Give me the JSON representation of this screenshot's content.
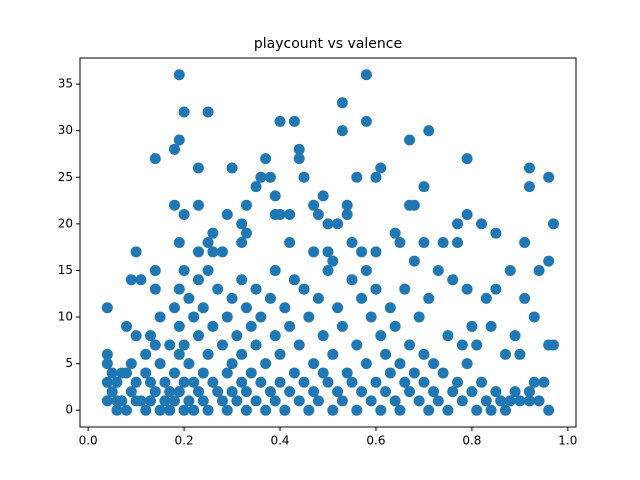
{
  "chart_data": {
    "type": "scatter",
    "title": "playcount vs valence",
    "color": "#1f77b4",
    "xlim": [
      -0.017,
      1.017
    ],
    "ylim": [
      -1.8,
      37.8
    ],
    "xticks": [
      {
        "value": 0,
        "label": "0.0"
      },
      0.2,
      0.4,
      0.6,
      0.8,
      {
        "value": 1,
        "label": "1.0"
      }
    ],
    "yticks": [
      0,
      5,
      10,
      15,
      20,
      25,
      30,
      35
    ],
    "x": [
      0.19,
      0.58,
      0.2,
      0.25,
      0.53,
      0.19,
      0.18,
      0.4,
      0.43,
      0.53,
      0.58,
      0.71,
      0.14,
      0.37,
      0.44,
      0.79,
      0.67,
      0.23,
      0.3,
      0.44,
      0.61,
      0.92,
      0.36,
      0.38,
      0.45,
      0.56,
      0.6,
      0.96,
      0.35,
      0.7,
      0.92,
      0.49,
      0.39,
      0.18,
      0.23,
      0.33,
      0.47,
      0.54,
      0.67,
      0.68,
      0.2,
      0.29,
      0.39,
      0.4,
      0.42,
      0.48,
      0.54,
      0.79,
      0.32,
      0.5,
      0.52,
      0.77,
      0.82,
      0.97,
      0.26,
      0.33,
      0.64,
      0.85,
      0.19,
      0.25,
      0.32,
      0.42,
      0.55,
      0.65,
      0.7,
      0.74,
      0.77,
      0.91,
      0.1,
      0.23,
      0.26,
      0.28,
      0.47,
      0.5,
      0.51,
      0.57,
      0.6,
      0.04,
      0.04,
      0.04,
      0.04,
      0.04,
      0.05,
      0.05,
      0.06,
      0.06,
      0.06,
      0.07,
      0.07,
      0.08,
      0.08,
      0.08,
      0.09,
      0.09,
      0.09,
      0.1,
      0.1,
      0.1,
      0.11,
      0.11,
      0.12,
      0.12,
      0.12,
      0.13,
      0.13,
      0.13,
      0.14,
      0.14,
      0.14,
      0.14,
      0.15,
      0.15,
      0.15,
      0.16,
      0.16,
      0.17,
      0.17,
      0.17,
      0.18,
      0.18,
      0.18,
      0.19,
      0.19,
      0.19,
      0.19,
      0.2,
      0.2,
      0.2,
      0.2,
      0.21,
      0.21,
      0.21,
      0.22,
      0.22,
      0.22,
      0.23,
      0.23,
      0.23,
      0.24,
      0.24,
      0.24,
      0.25,
      0.25,
      0.25,
      0.26,
      0.26,
      0.27,
      0.27,
      0.28,
      0.28,
      0.29,
      0.29,
      0.29,
      0.3,
      0.3,
      0.3,
      0.31,
      0.31,
      0.32,
      0.32,
      0.32,
      0.33,
      0.33,
      0.33,
      0.34,
      0.34,
      0.35,
      0.35,
      0.35,
      0.36,
      0.36,
      0.37,
      0.37,
      0.38,
      0.38,
      0.39,
      0.39,
      0.39,
      0.4,
      0.4,
      0.41,
      0.41,
      0.42,
      0.42,
      0.43,
      0.43,
      0.44,
      0.44,
      0.45,
      0.45,
      0.46,
      0.46,
      0.47,
      0.47,
      0.48,
      0.48,
      0.49,
      0.49,
      0.5,
      0.5,
      0.51,
      0.51,
      0.52,
      0.52,
      0.53,
      0.53,
      0.54,
      0.55,
      0.55,
      0.56,
      0.56,
      0.57,
      0.57,
      0.58,
      0.58,
      0.59,
      0.59,
      0.6,
      0.6,
      0.61,
      0.61,
      0.62,
      0.62,
      0.63,
      0.63,
      0.64,
      0.64,
      0.65,
      0.65,
      0.66,
      0.66,
      0.67,
      0.67,
      0.68,
      0.68,
      0.69,
      0.69,
      0.7,
      0.7,
      0.71,
      0.71,
      0.72,
      0.72,
      0.73,
      0.73,
      0.74,
      0.75,
      0.75,
      0.76,
      0.76,
      0.77,
      0.78,
      0.78,
      0.79,
      0.79,
      0.8,
      0.8,
      0.81,
      0.81,
      0.82,
      0.83,
      0.83,
      0.84,
      0.84,
      0.85,
      0.85,
      0.86,
      0.87,
      0.87,
      0.88,
      0.88,
      0.89,
      0.89,
      0.9,
      0.9,
      0.91,
      0.92,
      0.92,
      0.93,
      0.93,
      0.94,
      0.94,
      0.95,
      0.96,
      0.96,
      0.96,
      0.97
    ],
    "values": [
      36,
      36,
      32,
      32,
      33,
      29,
      28,
      31,
      31,
      30,
      31,
      30,
      27,
      27,
      28,
      27,
      29,
      26,
      26,
      27,
      26,
      26,
      25,
      25,
      25,
      25,
      25,
      25,
      24,
      24,
      24,
      23,
      23,
      22,
      22,
      22,
      22,
      22,
      22,
      22,
      21,
      21,
      21,
      21,
      21,
      21,
      21,
      21,
      20,
      20,
      20,
      20,
      20,
      20,
      19,
      19,
      19,
      19,
      18,
      18,
      18,
      18,
      18,
      18,
      18,
      18,
      18,
      18,
      17,
      17,
      17,
      17,
      17,
      17,
      16,
      17,
      17,
      11,
      6,
      5,
      3,
      1,
      2,
      4,
      3,
      1,
      0,
      4,
      1,
      9,
      4,
      0,
      14,
      5,
      2,
      8,
      3,
      1,
      14,
      1,
      6,
      4,
      0,
      8,
      3,
      1,
      15,
      13,
      7,
      2,
      10,
      5,
      0,
      3,
      1,
      7,
      2,
      0,
      11,
      4,
      1,
      13,
      9,
      6,
      2,
      15,
      7,
      3,
      0,
      12,
      5,
      1,
      10,
      3,
      0,
      14,
      8,
      2,
      11,
      4,
      1,
      15,
      6,
      0,
      9,
      3,
      13,
      2,
      7,
      1,
      10,
      4,
      0,
      12,
      5,
      2,
      8,
      1,
      14,
      6,
      3,
      11,
      2,
      0,
      9,
      4,
      13,
      7,
      1,
      10,
      3,
      5,
      0,
      12,
      2,
      15,
      8,
      1,
      6,
      3,
      11,
      0,
      9,
      2,
      14,
      4,
      7,
      1,
      13,
      3,
      10,
      0,
      5,
      2,
      12,
      1,
      8,
      4,
      15,
      3,
      6,
      0,
      11,
      2,
      9,
      1,
      4,
      14,
      3,
      7,
      0,
      12,
      2,
      15,
      5,
      10,
      1,
      13,
      3,
      8,
      0,
      6,
      2,
      11,
      4,
      9,
      1,
      5,
      0,
      13,
      3,
      7,
      2,
      16,
      4,
      10,
      1,
      6,
      3,
      12,
      0,
      5,
      2,
      15,
      1,
      4,
      8,
      0,
      14,
      2,
      3,
      7,
      1,
      13,
      5,
      9,
      2,
      7,
      0,
      3,
      12,
      1,
      9,
      0,
      13,
      2,
      1,
      6,
      0,
      15,
      1,
      8,
      2,
      6,
      1,
      12,
      2,
      1,
      10,
      3,
      15,
      1,
      3,
      16,
      7,
      0,
      7
    ]
  }
}
